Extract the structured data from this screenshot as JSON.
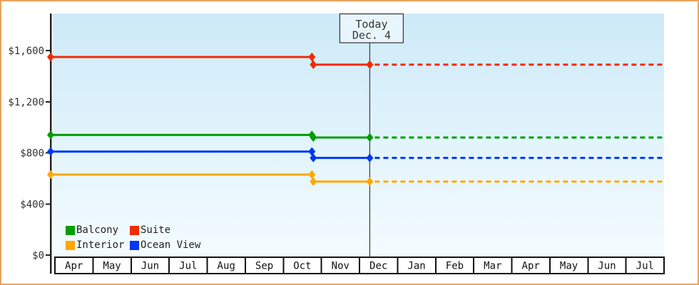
{
  "window": {
    "border_color": "#e8a55f",
    "background": "#ffffff"
  },
  "chart_data": {
    "type": "line",
    "title": "",
    "description": "Cruise cabin price history: solid lines up to today, dotted projection after today at current price",
    "today_marker": {
      "line1": "Today",
      "line2": "Dec. 4",
      "month_position": 8.27
    },
    "price_drop_month_position": 6.75,
    "x_axis": {
      "categories": [
        "Apr",
        "May",
        "Jun",
        "Jul",
        "Aug",
        "Sep",
        "Oct",
        "Nov",
        "Dec",
        "Jan",
        "Feb",
        "Mar",
        "Apr",
        "May",
        "Jun",
        "Jul"
      ]
    },
    "y_axis": {
      "ticks": [
        {
          "label": "$0",
          "value": 0
        },
        {
          "label": "$400",
          "value": 400
        },
        {
          "label": "$800",
          "value": 800
        },
        {
          "label": "$1,200",
          "value": 1200
        },
        {
          "label": "$1,600",
          "value": 1600
        }
      ],
      "range": [
        0,
        1890
      ]
    },
    "series": [
      {
        "name": "Balcony",
        "color": "#009e00",
        "initial_price": 940,
        "current_price": 920
      },
      {
        "name": "Suite",
        "color": "#f22b00",
        "initial_price": 1550,
        "current_price": 1490
      },
      {
        "name": "Interior",
        "color": "#ffa800",
        "initial_price": 630,
        "current_price": 575
      },
      {
        "name": "Ocean View",
        "color": "#0038f5",
        "initial_price": 810,
        "current_price": 760
      }
    ],
    "grid": false,
    "legend_position": "bottom-left",
    "plot_background": {
      "top": "#cdeaf8",
      "bottom": "#f4fcff"
    }
  },
  "legend": {
    "items": [
      {
        "label": "Balcony",
        "color": "#009e00"
      },
      {
        "label": "Suite",
        "color": "#f22b00"
      },
      {
        "label": "Interior",
        "color": "#ffa800"
      },
      {
        "label": "Ocean View",
        "color": "#0038f5"
      }
    ]
  }
}
